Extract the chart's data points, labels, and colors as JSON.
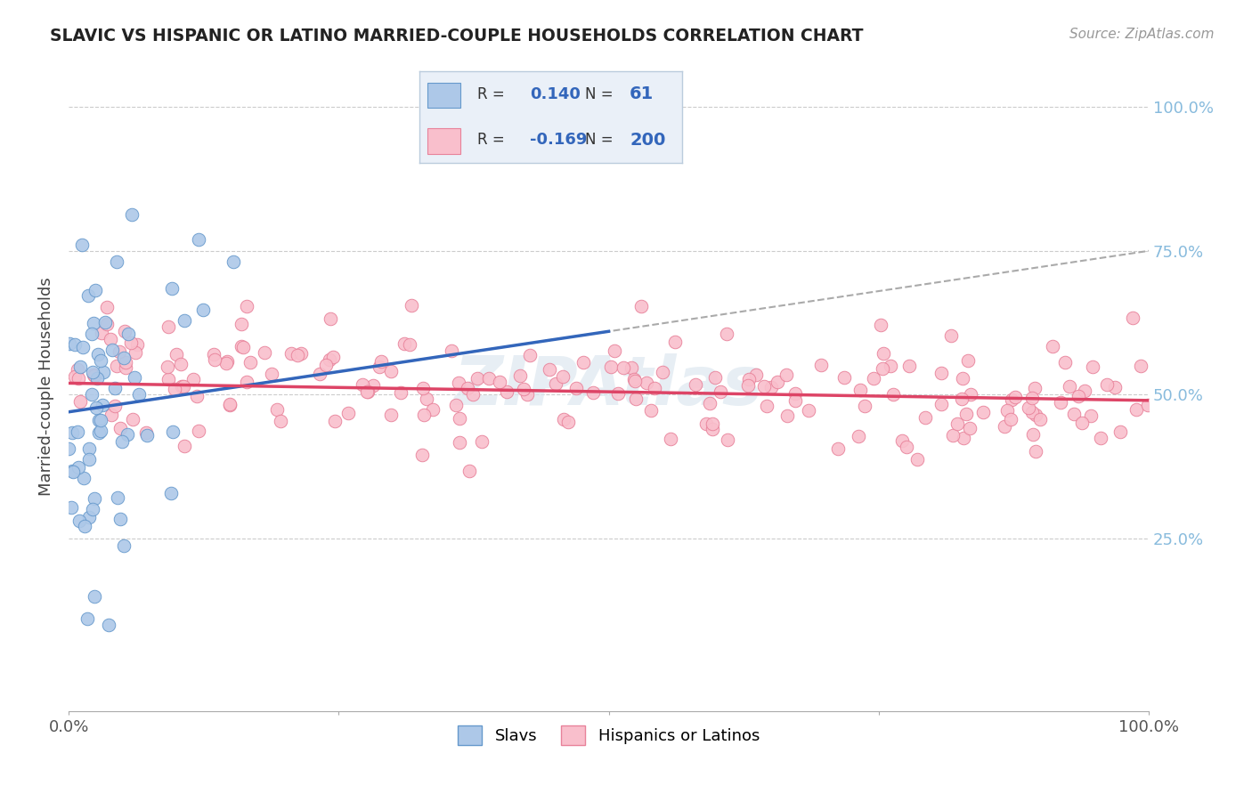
{
  "title": "SLAVIC VS HISPANIC OR LATINO MARRIED-COUPLE HOUSEHOLDS CORRELATION CHART",
  "source": "Source: ZipAtlas.com",
  "ylabel": "Married-couple Households",
  "xlim": [
    0,
    100
  ],
  "ylim": [
    -5,
    108
  ],
  "R_slavs": 0.14,
  "N_slavs": 61,
  "R_hispanics": -0.169,
  "N_hispanics": 200,
  "blue_fill": "#adc8e8",
  "blue_edge": "#6699cc",
  "pink_fill": "#f9bfcc",
  "pink_edge": "#e8829a",
  "blue_line_color": "#3366bb",
  "pink_line_color": "#dd4466",
  "gray_dash_color": "#aaaaaa",
  "legend_bg": "#eaf0f8",
  "legend_border": "#bbccdd",
  "text_blue": "#3366bb",
  "title_color": "#222222",
  "source_color": "#999999",
  "right_tick_color": "#88bbdd",
  "grid_color": "#cccccc",
  "background": "#ffffff",
  "watermark_color": "#dde8f0",
  "seed": 7,
  "blue_line_x0": 0,
  "blue_line_y0": 47,
  "blue_line_x1": 100,
  "blue_line_y1": 75,
  "blue_solid_x1": 50,
  "pink_line_x0": 0,
  "pink_line_y0": 52,
  "pink_line_x1": 100,
  "pink_line_y1": 49
}
